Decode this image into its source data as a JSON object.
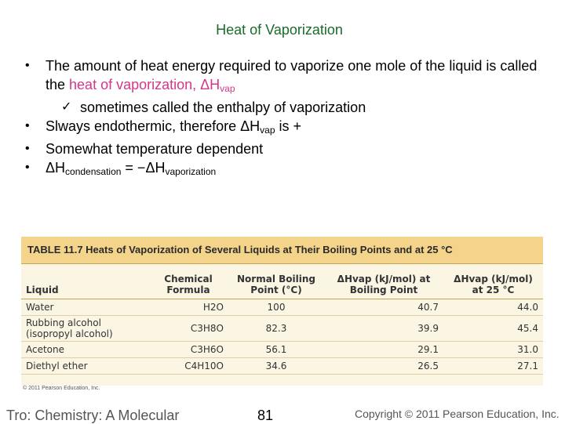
{
  "title": "Heat of Vaporization",
  "bullets": {
    "b1_text": "The amount of heat energy required to vaporize one mole of the liquid is called the ",
    "b1_highlight": "heat of vaporization, ΔH",
    "b1_sub": "vap",
    "b1_check": "sometimes called the enthalpy of vaporization",
    "b2_pre": "Slways endothermic, therefore ΔH",
    "b2_sub": "vap",
    "b2_post": " is +",
    "b3": "Somewhat temperature dependent",
    "b4_a": "ΔH",
    "b4_sub1": "condensation",
    "b4_b": " = −ΔH",
    "b4_sub2": "vaporization"
  },
  "table": {
    "caption": "TABLE 11.7  Heats of Vaporization of Several Liquids at Their Boiling Points and at 25 °C",
    "headers": [
      "Liquid",
      "Chemical Formula",
      "Normal Boiling Point (°C)",
      "ΔHvap (kJ/mol) at Boiling Point",
      "ΔHvap (kJ/mol) at 25 °C"
    ],
    "rows": [
      [
        "Water",
        "H2O",
        "100",
        "40.7",
        "44.0"
      ],
      [
        "Rubbing alcohol (isopropyl alcohol)",
        "C3H8O",
        "82.3",
        "39.9",
        "45.4"
      ],
      [
        "Acetone",
        "C3H6O",
        "56.1",
        "29.1",
        "31.0"
      ],
      [
        "Diethyl ether",
        "C4H10O",
        "34.6",
        "26.5",
        "27.1"
      ]
    ],
    "credit": "© 2011 Pearson Education, Inc."
  },
  "footer": {
    "left": "Tro: Chemistry: A Molecular",
    "page": "81",
    "right": "Copyright © 2011 Pearson Education, Inc."
  }
}
